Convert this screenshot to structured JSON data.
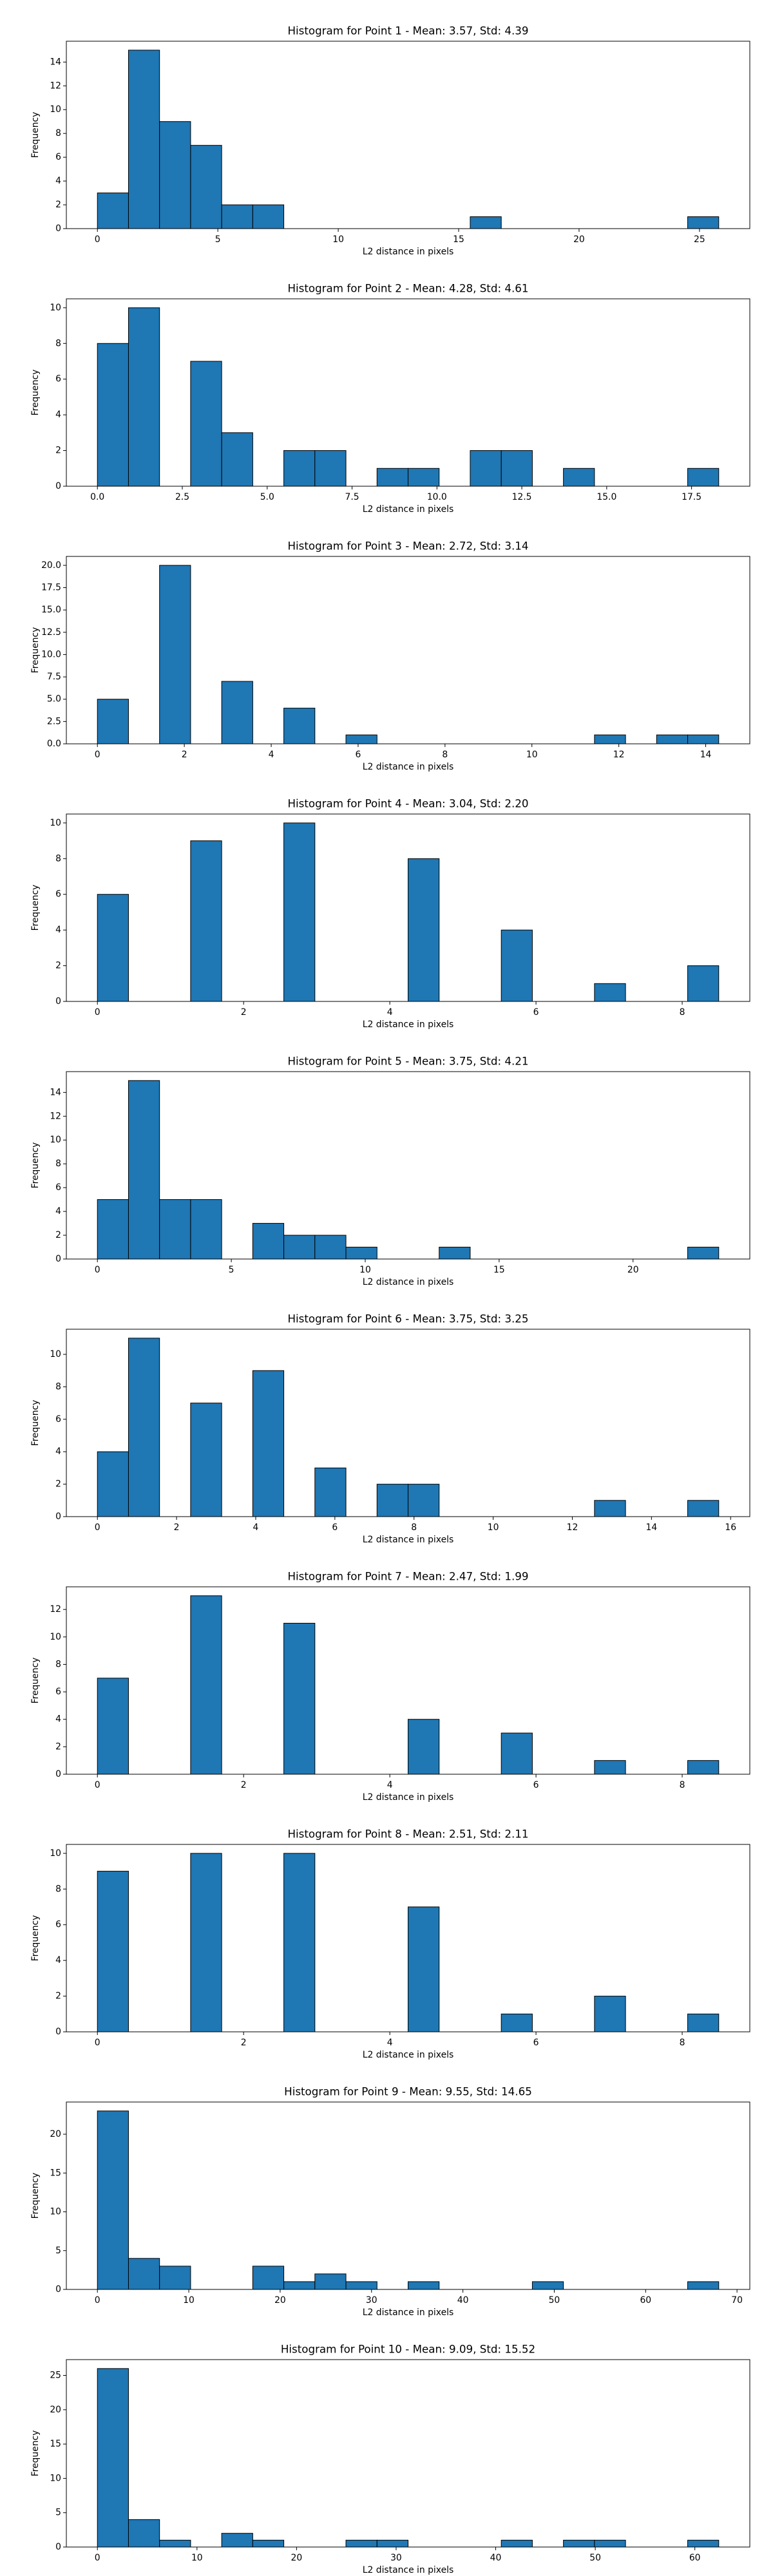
{
  "chart_data": [
    {
      "type": "histogram",
      "title": "Histogram for Point 1 - Mean: 3.57, Std: 4.39",
      "xlabel": "L2 distance in pixels",
      "ylabel": "Frequency",
      "color": "#1f77b4",
      "edgecolor": "#000000",
      "bins": [
        0,
        1.29,
        2.58,
        3.87,
        5.16,
        6.45,
        7.74,
        9.03,
        10.32,
        11.61,
        12.9,
        14.19,
        15.48,
        16.77,
        18.06,
        19.35,
        20.64,
        21.93,
        23.22,
        24.51,
        25.8
      ],
      "values": [
        3,
        15,
        9,
        7,
        2,
        2,
        0,
        0,
        0,
        0,
        0,
        0,
        1,
        0,
        0,
        0,
        0,
        0,
        0,
        1
      ],
      "xlim": [
        -1.29,
        27.09
      ],
      "xticks": [
        0,
        5,
        10,
        15,
        20,
        25
      ],
      "ylim": [
        0,
        15.75
      ],
      "yticks": [
        0,
        2,
        4,
        6,
        8,
        10,
        12,
        14
      ]
    },
    {
      "type": "histogram",
      "title": "Histogram for Point 2 - Mean: 4.28, Std: 4.61",
      "xlabel": "L2 distance in pixels",
      "ylabel": "Frequency",
      "color": "#1f77b4",
      "edgecolor": "#000000",
      "bins": [
        0,
        0.915,
        1.83,
        2.745,
        3.66,
        4.575,
        5.49,
        6.405,
        7.32,
        8.235,
        9.15,
        10.065,
        10.98,
        11.895,
        12.81,
        13.725,
        14.64,
        15.555,
        16.47,
        17.385,
        18.3
      ],
      "values": [
        8,
        10,
        0,
        7,
        3,
        0,
        2,
        2,
        0,
        1,
        1,
        0,
        2,
        2,
        0,
        1,
        0,
        0,
        0,
        1
      ],
      "xlim": [
        -0.915,
        19.215
      ],
      "xticks": [
        {
          "value": 0,
          "label": "0.0"
        },
        2.5,
        {
          "value": 5,
          "label": "5.0"
        },
        7.5,
        {
          "value": 10,
          "label": "10.0"
        },
        12.5,
        {
          "value": 15,
          "label": "15.0"
        },
        17.5
      ],
      "ylim": [
        0,
        10.5
      ],
      "yticks": [
        0,
        2,
        4,
        6,
        8,
        10
      ]
    },
    {
      "type": "histogram",
      "title": "Histogram for Point 3 - Mean: 2.72, Std: 3.14",
      "xlabel": "L2 distance in pixels",
      "ylabel": "Frequency",
      "color": "#1f77b4",
      "edgecolor": "#000000",
      "bins": [
        0,
        0.715,
        1.43,
        2.145,
        2.86,
        3.575,
        4.29,
        5.005,
        5.72,
        6.435,
        7.15,
        7.865,
        8.58,
        9.295,
        10.01,
        10.725,
        11.44,
        12.155,
        12.87,
        13.585,
        14.3
      ],
      "values": [
        5,
        0,
        20,
        0,
        7,
        0,
        4,
        0,
        1,
        0,
        0,
        0,
        0,
        0,
        0,
        0,
        1,
        0,
        1,
        1
      ],
      "xlim": [
        -0.715,
        15.015
      ],
      "xticks": [
        0,
        2,
        4,
        6,
        8,
        10,
        12,
        14
      ],
      "ylim": [
        0,
        21
      ],
      "yticks": [
        {
          "value": 0,
          "label": "0.0"
        },
        2.5,
        {
          "value": 5,
          "label": "5.0"
        },
        7.5,
        {
          "value": 10,
          "label": "10.0"
        },
        12.5,
        {
          "value": 15,
          "label": "15.0"
        },
        17.5,
        {
          "value": 20,
          "label": "20.0"
        }
      ]
    },
    {
      "type": "histogram",
      "title": "Histogram for Point 4 - Mean: 3.04, Std: 2.20",
      "xlabel": "L2 distance in pixels",
      "ylabel": "Frequency",
      "color": "#1f77b4",
      "edgecolor": "#000000",
      "bins": [
        0,
        0.425,
        0.85,
        1.275,
        1.7,
        2.125,
        2.55,
        2.975,
        3.4,
        3.825,
        4.25,
        4.675,
        5.1,
        5.525,
        5.95,
        6.375,
        6.8,
        7.225,
        7.65,
        8.075,
        8.5
      ],
      "values": [
        6,
        0,
        0,
        9,
        0,
        0,
        10,
        0,
        0,
        0,
        8,
        0,
        0,
        4,
        0,
        0,
        1,
        0,
        0,
        2
      ],
      "xlim": [
        -0.425,
        8.925
      ],
      "xticks": [
        0,
        2,
        4,
        6,
        8
      ],
      "ylim": [
        0,
        10.5
      ],
      "yticks": [
        0,
        2,
        4,
        6,
        8,
        10
      ]
    },
    {
      "type": "histogram",
      "title": "Histogram for Point 5 - Mean: 3.75, Std: 4.21",
      "xlabel": "L2 distance in pixels",
      "ylabel": "Frequency",
      "color": "#1f77b4",
      "edgecolor": "#000000",
      "bins": [
        0,
        1.16,
        2.32,
        3.48,
        4.64,
        5.8,
        6.96,
        8.12,
        9.28,
        10.44,
        11.6,
        12.76,
        13.92,
        15.08,
        16.24,
        17.4,
        18.56,
        19.72,
        20.88,
        22.04,
        23.2
      ],
      "values": [
        5,
        15,
        5,
        5,
        0,
        3,
        2,
        2,
        1,
        0,
        0,
        1,
        0,
        0,
        0,
        0,
        0,
        0,
        0,
        1
      ],
      "xlim": [
        -1.16,
        24.36
      ],
      "xticks": [
        0,
        5,
        10,
        15,
        20
      ],
      "ylim": [
        0,
        15.75
      ],
      "yticks": [
        0,
        2,
        4,
        6,
        8,
        10,
        12,
        14
      ]
    },
    {
      "type": "histogram",
      "title": "Histogram for Point 6 - Mean: 3.75, Std: 3.25",
      "xlabel": "L2 distance in pixels",
      "ylabel": "Frequency",
      "color": "#1f77b4",
      "edgecolor": "#000000",
      "bins": [
        0,
        0.785,
        1.57,
        2.355,
        3.14,
        3.925,
        4.71,
        5.495,
        6.28,
        7.065,
        7.85,
        8.635,
        9.42,
        10.205,
        10.99,
        11.775,
        12.56,
        13.345,
        14.13,
        14.915,
        15.7
      ],
      "values": [
        4,
        11,
        0,
        7,
        0,
        9,
        0,
        3,
        0,
        2,
        2,
        0,
        0,
        0,
        0,
        0,
        1,
        0,
        0,
        1
      ],
      "xlim": [
        -0.785,
        16.485
      ],
      "xticks": [
        0,
        2,
        4,
        6,
        8,
        10,
        12,
        14,
        16
      ],
      "ylim": [
        0,
        11.55
      ],
      "yticks": [
        0,
        2,
        4,
        6,
        8,
        10
      ]
    },
    {
      "type": "histogram",
      "title": "Histogram for Point 7 - Mean: 2.47, Std: 1.99",
      "xlabel": "L2 distance in pixels",
      "ylabel": "Frequency",
      "color": "#1f77b4",
      "edgecolor": "#000000",
      "bins": [
        0,
        0.425,
        0.85,
        1.275,
        1.7,
        2.125,
        2.55,
        2.975,
        3.4,
        3.825,
        4.25,
        4.675,
        5.1,
        5.525,
        5.95,
        6.375,
        6.8,
        7.225,
        7.65,
        8.075,
        8.5
      ],
      "values": [
        7,
        0,
        0,
        13,
        0,
        0,
        11,
        0,
        0,
        0,
        4,
        0,
        0,
        3,
        0,
        0,
        1,
        0,
        0,
        1
      ],
      "xlim": [
        -0.425,
        8.925
      ],
      "xticks": [
        0,
        2,
        4,
        6,
        8
      ],
      "ylim": [
        0,
        13.65
      ],
      "yticks": [
        0,
        2,
        4,
        6,
        8,
        10,
        12
      ]
    },
    {
      "type": "histogram",
      "title": "Histogram for Point 8 - Mean: 2.51, Std: 2.11",
      "xlabel": "L2 distance in pixels",
      "ylabel": "Frequency",
      "color": "#1f77b4",
      "edgecolor": "#000000",
      "bins": [
        0,
        0.425,
        0.85,
        1.275,
        1.7,
        2.125,
        2.55,
        2.975,
        3.4,
        3.825,
        4.25,
        4.675,
        5.1,
        5.525,
        5.95,
        6.375,
        6.8,
        7.225,
        7.65,
        8.075,
        8.5
      ],
      "values": [
        9,
        0,
        0,
        10,
        0,
        0,
        10,
        0,
        0,
        0,
        7,
        0,
        0,
        1,
        0,
        0,
        2,
        0,
        0,
        1
      ],
      "xlim": [
        -0.425,
        8.925
      ],
      "xticks": [
        0,
        2,
        4,
        6,
        8
      ],
      "ylim": [
        0,
        10.5
      ],
      "yticks": [
        0,
        2,
        4,
        6,
        8,
        10
      ]
    },
    {
      "type": "histogram",
      "title": "Histogram for Point 9 - Mean: 9.55, Std: 14.65",
      "xlabel": "L2 distance in pixels",
      "ylabel": "Frequency",
      "color": "#1f77b4",
      "edgecolor": "#000000",
      "bins": [
        0,
        3.4,
        6.8,
        10.2,
        13.6,
        17,
        20.4,
        23.8,
        27.2,
        30.6,
        34,
        37.4,
        40.8,
        44.2,
        47.6,
        51,
        54.4,
        57.8,
        61.2,
        64.6,
        68
      ],
      "values": [
        23,
        4,
        3,
        0,
        0,
        3,
        1,
        2,
        1,
        0,
        1,
        0,
        0,
        0,
        1,
        0,
        0,
        0,
        0,
        1
      ],
      "xlim": [
        -3.4,
        71.4
      ],
      "xticks": [
        0,
        10,
        20,
        30,
        40,
        50,
        60,
        70
      ],
      "ylim": [
        0,
        24.15
      ],
      "yticks": [
        0,
        5,
        10,
        15,
        20
      ]
    },
    {
      "type": "histogram",
      "title": "Histogram for Point 10 - Mean: 9.09, Std: 15.52",
      "xlabel": "L2 distance in pixels",
      "ylabel": "Frequency",
      "color": "#1f77b4",
      "edgecolor": "#000000",
      "bins": [
        0,
        3.12,
        6.24,
        9.36,
        12.48,
        15.6,
        18.72,
        21.84,
        24.96,
        28.08,
        31.2,
        34.32,
        37.44,
        40.56,
        43.68,
        46.8,
        49.92,
        53.04,
        56.16,
        59.28,
        62.4
      ],
      "values": [
        26,
        4,
        1,
        0,
        2,
        1,
        0,
        0,
        1,
        1,
        0,
        0,
        0,
        1,
        0,
        1,
        1,
        0,
        0,
        1
      ],
      "xlim": [
        -3.12,
        65.52
      ],
      "xticks": [
        0,
        10,
        20,
        30,
        40,
        50,
        60
      ],
      "ylim": [
        0,
        27.3
      ],
      "yticks": [
        0,
        5,
        10,
        15,
        20,
        25
      ]
    }
  ]
}
